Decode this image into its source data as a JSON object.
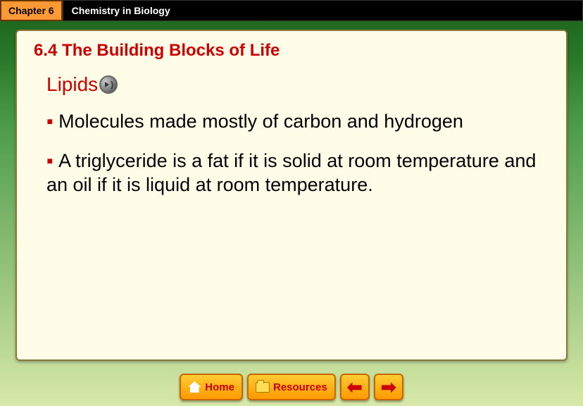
{
  "header": {
    "chapter_label": "Chapter 6",
    "chapter_title": "Chemistry in Biology"
  },
  "content": {
    "section_title": "6.4 The Building Blocks of Life",
    "subtitle": "Lipids",
    "bullets": [
      "Molecules made mostly of carbon and hydrogen",
      "A triglyceride is a fat if it is solid at room temperature and an oil if it is liquid at room temperature."
    ]
  },
  "nav": {
    "home_label": "Home",
    "resources_label": "Resources"
  },
  "colors": {
    "accent_red": "#cc0000",
    "tab_orange": "#ff9933",
    "content_bg": "#fffde8",
    "button_gradient_top": "#ffcc33",
    "button_gradient_bottom": "#ff9900"
  }
}
